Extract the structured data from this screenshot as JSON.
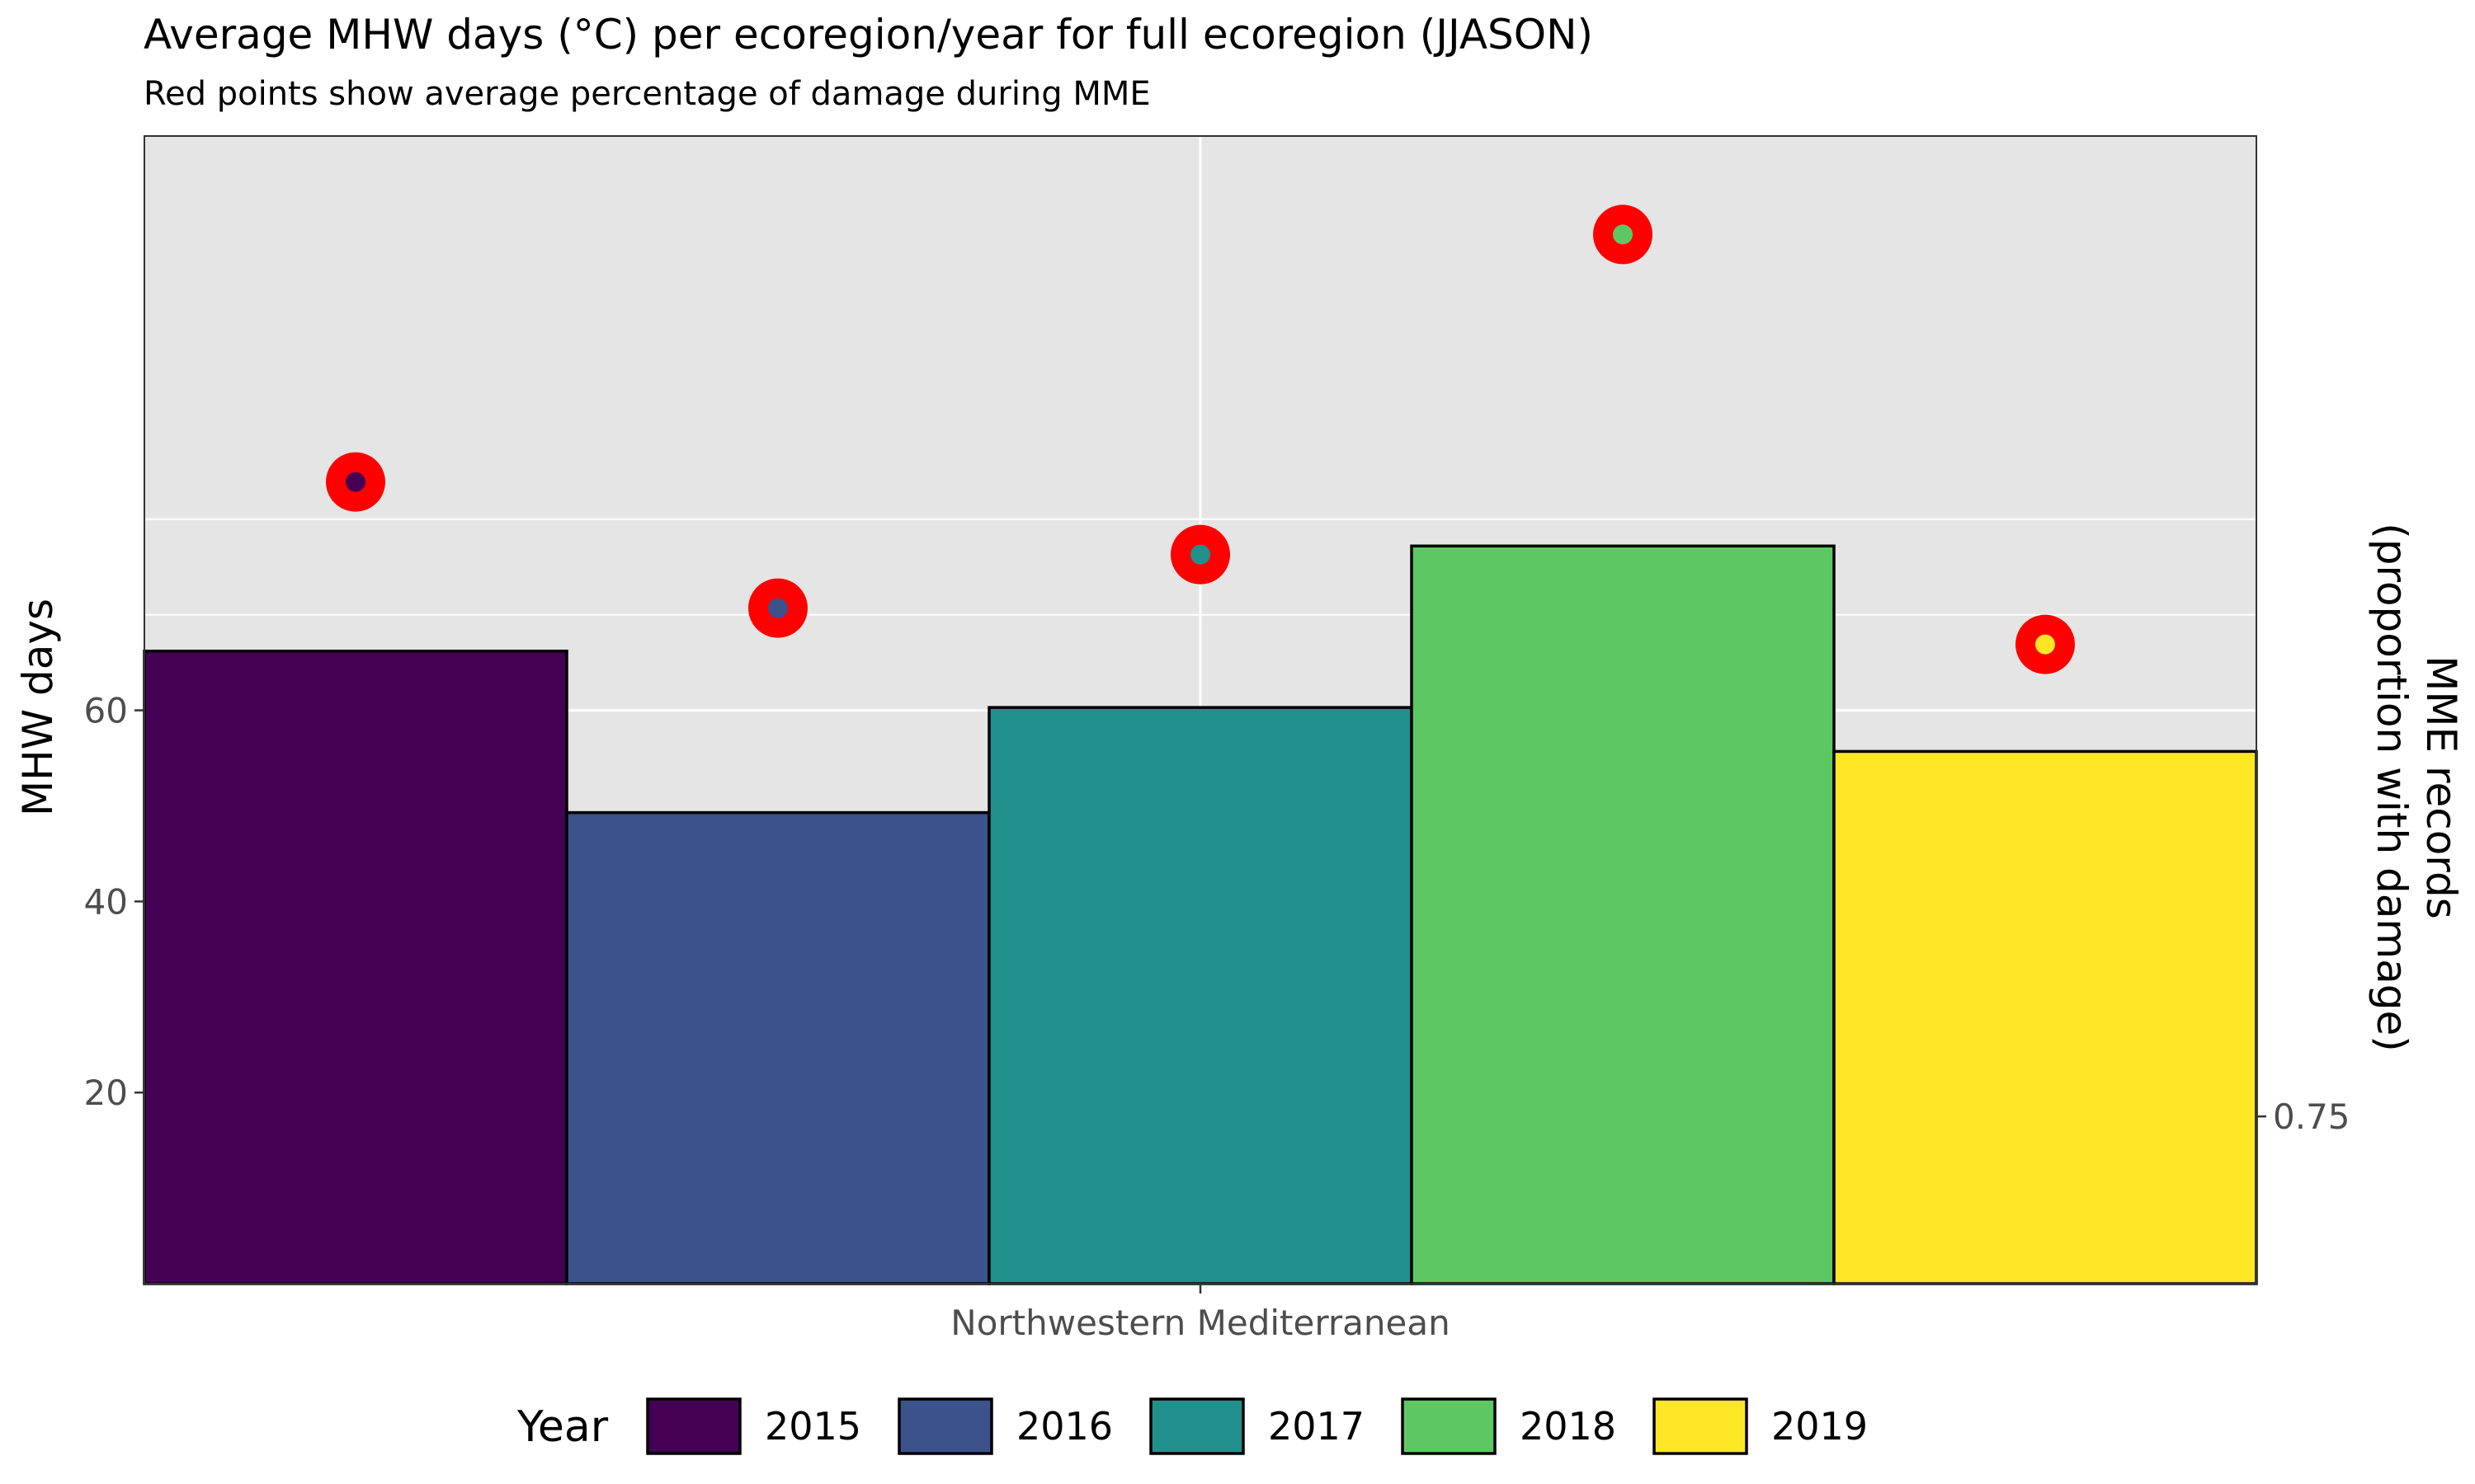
{
  "chart_data": {
    "type": "bar",
    "title": "Average MHW days (°C) per ecoregion/year for full ecoregion (JJASON)",
    "subtitle": "Red points show average percentage of damage during MME",
    "xlabel": "",
    "ylabel": "MHW days",
    "y2label_line1": "MME records",
    "y2label_line2": "(proportion with damage)",
    "categories": [
      "Northwestern Mediterranean"
    ],
    "ylim": [
      0,
      120
    ],
    "yticks": [
      20,
      40,
      60
    ],
    "grid_major_y": [
      60
    ],
    "grid_minor_y": [
      70,
      80
    ],
    "y2ticks": [
      {
        "label": "0.75",
        "y": 17.5
      }
    ],
    "series": [
      {
        "name": "2015",
        "color": "#440154",
        "value": 66.2,
        "damage_point_y": 83.9
      },
      {
        "name": "2016",
        "color": "#3B528B",
        "value": 49.3,
        "damage_point_y": 70.7
      },
      {
        "name": "2017",
        "color": "#21908C",
        "value": 60.3,
        "damage_point_y": 76.3
      },
      {
        "name": "2018",
        "color": "#5DC863",
        "value": 77.2,
        "damage_point_y": 109.8
      },
      {
        "name": "2019",
        "color": "#FDE725",
        "value": 55.7,
        "damage_point_y": 66.9
      }
    ],
    "point_color": "#FF0000",
    "panel_background": "#E5E5E5",
    "grid": true,
    "legend_position": "bottom",
    "legend_title": "Year"
  }
}
